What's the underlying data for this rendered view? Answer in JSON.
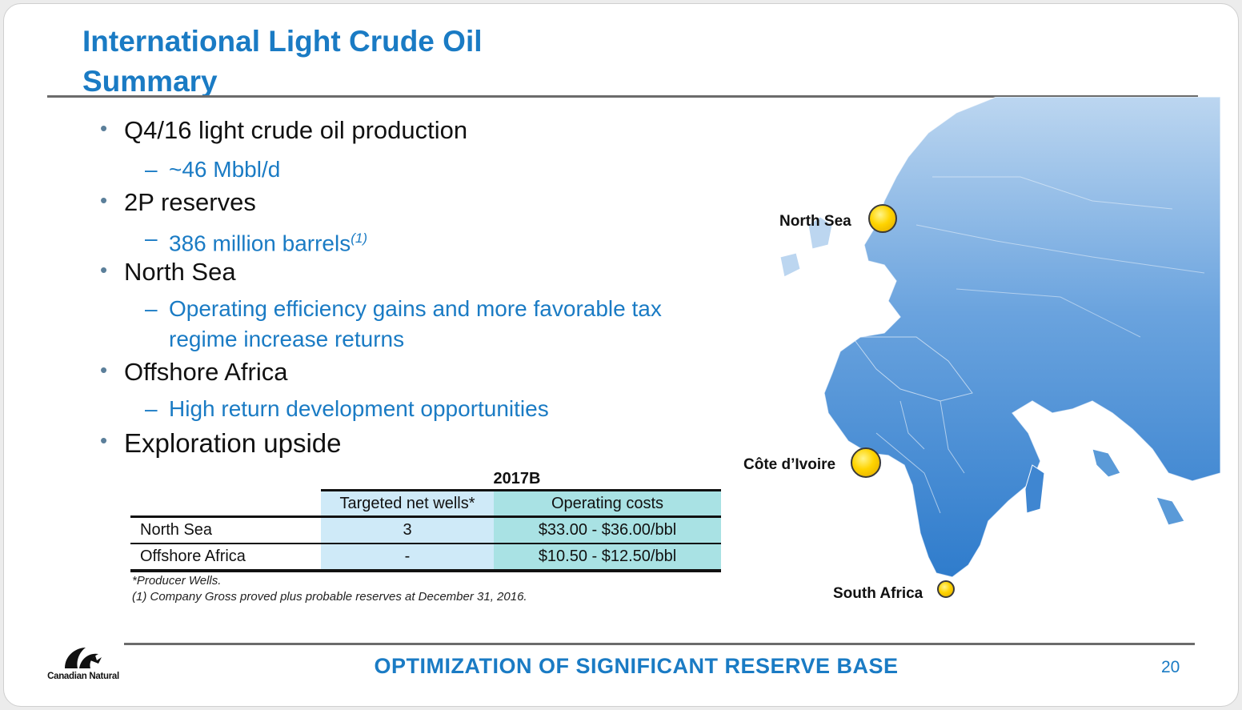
{
  "title": {
    "line1": "International Light Crude Oil",
    "line2": "Summary"
  },
  "bullets": [
    {
      "text": "Q4/16 light crude oil production",
      "sub": [
        "~46 Mbbl/d"
      ]
    },
    {
      "text": "2P reserves",
      "sub": [
        "386 million barrels"
      ],
      "sub_footnote": "(1)"
    },
    {
      "text": "North Sea",
      "sub": [
        "Operating efficiency gains and more favorable tax",
        "regime increase returns"
      ]
    },
    {
      "text": "Offshore Africa",
      "sub": [
        "High return development opportunities"
      ]
    },
    {
      "text": "Exploration upside",
      "sub": []
    }
  ],
  "table": {
    "group_header": "2017B",
    "columns": [
      "",
      "Targeted net wells*",
      "Operating costs"
    ],
    "rows": [
      {
        "label": "North Sea",
        "wells": "3",
        "costs": "$33.00 - $36.00/bbl"
      },
      {
        "label": "Offshore Africa",
        "wells": "-",
        "costs": "$10.50 - $12.50/bbl"
      }
    ]
  },
  "footnotes": [
    "*Producer Wells.",
    "(1) Company Gross proved plus probable reserves at December 31, 2016."
  ],
  "map": {
    "labels": {
      "north_sea": "North Sea",
      "cote": "Côte d’Ivoire",
      "south_africa": "South Africa"
    },
    "land_color": "#4d8fd6",
    "pin_color": "#ffd400"
  },
  "footer": {
    "tagline": "OPTIMIZATION OF SIGNIFICANT RESERVE BASE",
    "page": "20",
    "logo_text": "Canadian Natural"
  },
  "colors": {
    "accent": "#1a7bc4",
    "wells_cell": "#cfeaf8",
    "cost_cell": "#a9e2e4"
  }
}
